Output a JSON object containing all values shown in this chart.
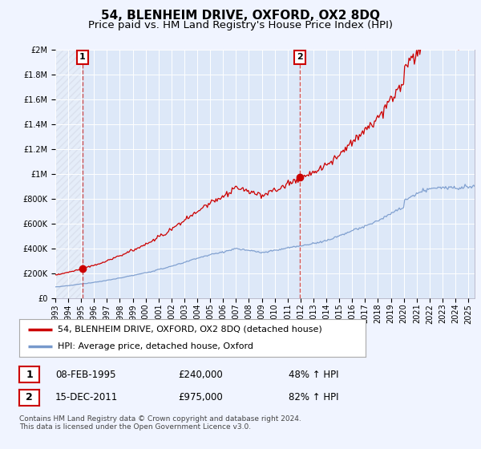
{
  "title": "54, BLENHEIM DRIVE, OXFORD, OX2 8DQ",
  "subtitle": "Price paid vs. HM Land Registry's House Price Index (HPI)",
  "ylim": [
    0,
    2000000
  ],
  "xlim_start": 1993.0,
  "xlim_end": 2025.5,
  "background_color": "#f0f4ff",
  "plot_bg_color": "#dde8f8",
  "grid_color": "#ffffff",
  "sale1_year": 1995.1,
  "sale1_price": 240000,
  "sale2_year": 2011.96,
  "sale2_price": 975000,
  "legend_line1": "54, BLENHEIM DRIVE, OXFORD, OX2 8DQ (detached house)",
  "legend_line2": "HPI: Average price, detached house, Oxford",
  "table_row1": [
    "1",
    "08-FEB-1995",
    "£240,000",
    "48% ↑ HPI"
  ],
  "table_row2": [
    "2",
    "15-DEC-2011",
    "£975,000",
    "82% ↑ HPI"
  ],
  "footer": "Contains HM Land Registry data © Crown copyright and database right 2024.\nThis data is licensed under the Open Government Licence v3.0.",
  "hpi_color": "#7799cc",
  "price_color": "#cc0000",
  "marker_color": "#cc0000",
  "dashed_line_color": "#cc4444",
  "hatch_color": "#bbbbcc",
  "title_fontsize": 11,
  "subtitle_fontsize": 9.5,
  "tick_fontsize": 7,
  "legend_fontsize": 8,
  "table_fontsize": 8.5,
  "footer_fontsize": 6.5
}
